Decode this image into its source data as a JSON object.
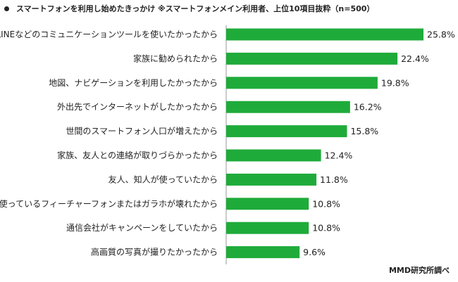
{
  "title": "スマートフォンを利用し始めたきっかけ ※スマートフォンメイン利用者、上位10項目抜粋（n=500）",
  "source": "MMD研究所調べ",
  "colors": {
    "bar": "#1fab3a",
    "axis": "#9a9a9a"
  },
  "chart_data": {
    "type": "bar",
    "orientation": "horizontal",
    "unit": "%",
    "categories": [
      "LINEなどのコミュニケーションツールを使いたかったから",
      "家族に勧められたから",
      "地図、ナビゲーションを利用したかったから",
      "外出先でインターネットがしたかったから",
      "世間のスマートフォン人口が増えたから",
      "家族、友人との連絡が取りづらかったから",
      "友人、知人が使っていたから",
      "使っているフィーチャーフォンまたはガラホが壊れたから",
      "通信会社がキャンペーンをしていたから",
      "高画質の写真が撮りたかったから"
    ],
    "values": [
      25.8,
      22.4,
      19.8,
      16.2,
      15.8,
      12.4,
      11.8,
      10.8,
      10.8,
      9.6
    ],
    "value_labels": [
      "25.8%",
      "22.4%",
      "19.8%",
      "16.2%",
      "15.8%",
      "12.4%",
      "11.8%",
      "10.8%",
      "10.8%",
      "9.6%"
    ]
  }
}
